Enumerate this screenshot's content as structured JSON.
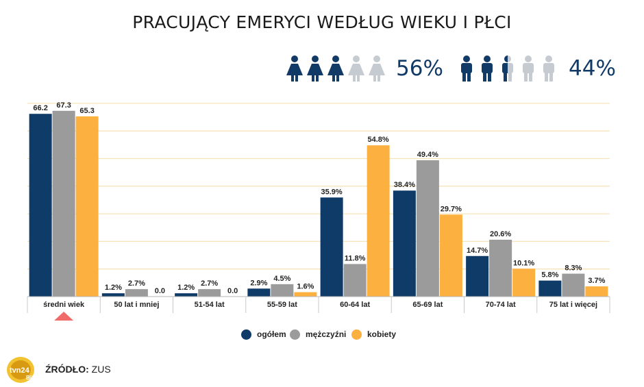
{
  "title": "PRACUJĄCY EMERYCI WEDŁUG WIEKU I PŁCI",
  "gender_share": {
    "women_percent": "56%",
    "men_percent": "44%",
    "women_icons_filled": 3,
    "women_icons_total": 5,
    "men_icons_filled": 2.5,
    "men_icons_total": 5,
    "filled_color": "#123a66",
    "empty_color": "#c6cbd1"
  },
  "chart_data": {
    "type": "bar",
    "categories": [
      "średni wiek",
      "50 lat i mniej",
      "51-54 lat",
      "55-59 lat",
      "60-64 lat",
      "65-69 lat",
      "70-74 lat",
      "75 lat i więcej"
    ],
    "series": [
      {
        "name": "ogółem",
        "color": "#0f3b68",
        "values": [
          66.2,
          1.2,
          1.2,
          2.9,
          35.9,
          38.4,
          14.7,
          5.8
        ],
        "labels": [
          "66.2",
          "1.2%",
          "1.2%",
          "2.9%",
          "35.9%",
          "38.4%",
          "14.7%",
          "5.8%"
        ]
      },
      {
        "name": "mężczyźni",
        "color": "#9b9b9b",
        "values": [
          67.3,
          2.7,
          2.7,
          4.5,
          11.8,
          49.4,
          20.6,
          8.3
        ],
        "labels": [
          "67.3",
          "2.7%",
          "2.7%",
          "4.5%",
          "11.8%",
          "49.4%",
          "20.6%",
          "8.3%"
        ]
      },
      {
        "name": "kobiety",
        "color": "#fbb040",
        "values": [
          65.3,
          0.0,
          0.0,
          1.6,
          54.8,
          29.7,
          10.1,
          3.7
        ],
        "labels": [
          "65.3",
          "0.0",
          "0.0",
          "1.6%",
          "54.8%",
          "29.7%",
          "10.1%",
          "3.7%"
        ]
      }
    ],
    "ylim": [
      0,
      70
    ],
    "grid": true,
    "gridline_color": "#f7e3b8",
    "highlight_marker_color": "#f06a6a",
    "legend_position": "bottom-center"
  },
  "source": {
    "label": "ŹRÓDŁO:",
    "value": "ZUS"
  },
  "logo": {
    "text": "tvn24",
    "sub": "BiS"
  }
}
